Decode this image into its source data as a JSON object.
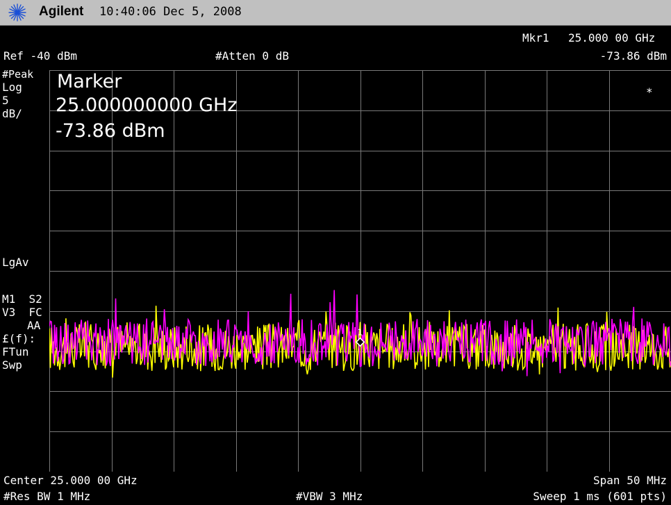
{
  "title_bar": {
    "brand": "Agilent",
    "time": "10:40:06",
    "date": "Dec 5, 2008"
  },
  "header": {
    "marker_label": "Mkr1",
    "marker_freq": "25.000 00 GHz",
    "marker_amp": "-73.86 dBm",
    "ref_level": "Ref -40 dBm",
    "attenuation": "#Atten 0 dB"
  },
  "left_panel": {
    "detector": "#Peak",
    "scale_type": "Log",
    "scale_value": "5",
    "scale_unit": "dB/",
    "avg_type": "LgAv",
    "trace_m1s2": "M1  S2",
    "trace_v3fc": "V3  FC",
    "aa": "AA",
    "ff": "£(f):",
    "ftun": "FTun",
    "swp": "Swp"
  },
  "marker_readout": {
    "title": "Marker",
    "frequency": "25.000000000 GHz",
    "amplitude": "-73.86 dBm",
    "asterisk": "*",
    "marker_number": "1"
  },
  "footer": {
    "center": "Center 25.000 00 GHz",
    "span": "Span 50 MHz",
    "rbw": "#Res BW 1 MHz",
    "vbw": "#VBW 3 MHz",
    "sweep": "Sweep 1 ms (601 pts)"
  },
  "chart_data": {
    "type": "line",
    "xlabel": "",
    "ylabel": "",
    "x_center_ghz": 25.0,
    "span_mhz": 50,
    "ref_level_dbm": -40,
    "scale_db_per_div": 5,
    "ylim": [
      -90,
      -40
    ],
    "grid": true,
    "series": [
      {
        "color": "#ffff00",
        "approx_level_dbm": -74.5,
        "noise_pp_db": 3
      },
      {
        "color": "#ff00ff",
        "approx_level_dbm": -73.9,
        "noise_pp_db": 3
      }
    ],
    "markers": [
      {
        "id": "1",
        "freq_ghz": 25.0,
        "amp_dbm": -73.86
      }
    ]
  },
  "colors": {
    "trace_yellow": "#ffff00",
    "trace_magenta": "#ff00ff",
    "grid": "#7a7a7a",
    "title_bar_bg": "#c0c0c0"
  }
}
